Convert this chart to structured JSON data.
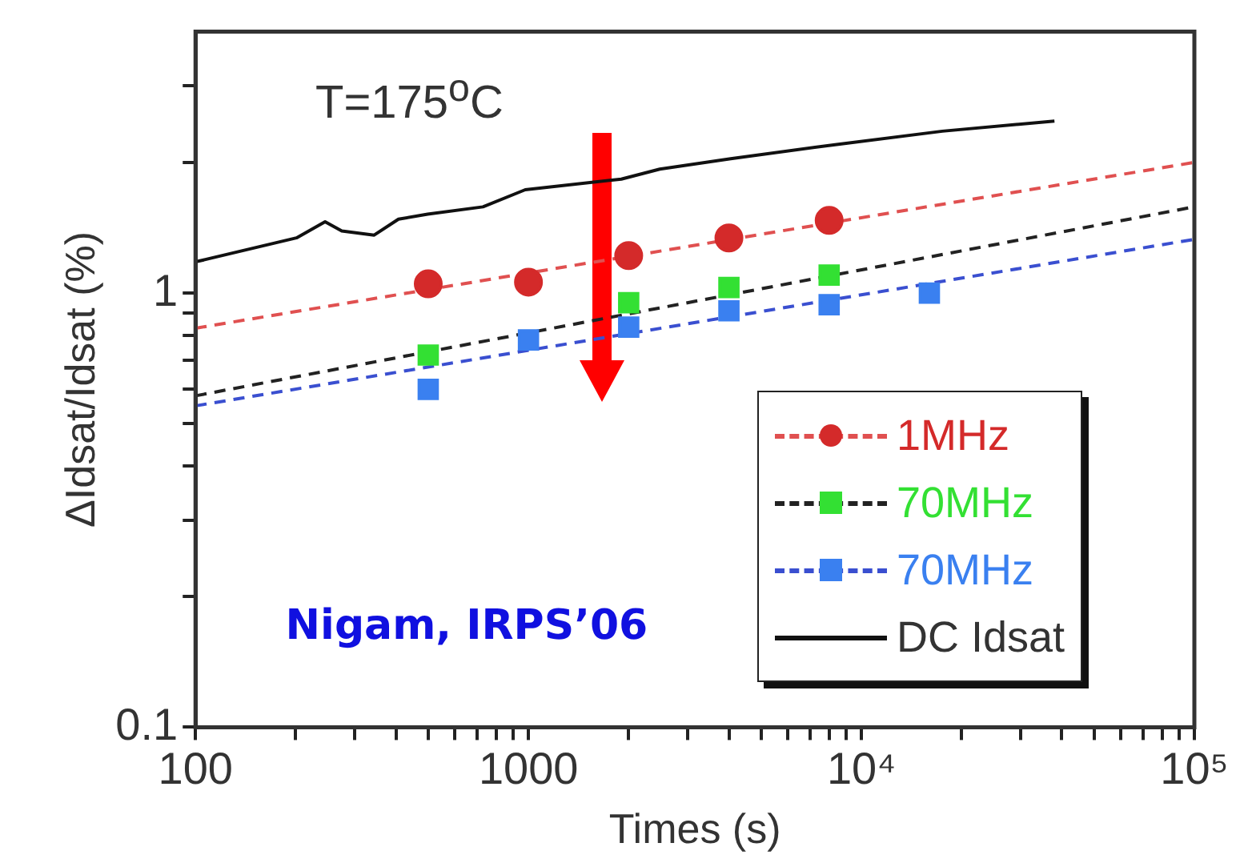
{
  "chart_data": {
    "type": "scatter",
    "xlabel": "Times (s)",
    "ylabel": "ΔIdsat/Idsat (%)",
    "log": "xy",
    "grid": false,
    "legend": "bottom right",
    "xlim": [
      100,
      100000
    ],
    "ylim": [
      0.1,
      4
    ],
    "xticks": [
      100,
      {
        "value": 200,
        "label": null
      },
      {
        "value": 300,
        "label": null
      },
      {
        "value": 400,
        "label": null
      },
      {
        "value": 500,
        "label": null
      },
      {
        "value": 600,
        "label": null
      },
      {
        "value": 700,
        "label": null
      },
      {
        "value": 800,
        "label": null
      },
      {
        "value": 900,
        "label": null
      },
      1000,
      {
        "value": 2000,
        "label": null
      },
      {
        "value": 3000,
        "label": null
      },
      {
        "value": 4000,
        "label": null
      },
      {
        "value": 5000,
        "label": null
      },
      {
        "value": 6000,
        "label": null
      },
      {
        "value": 7000,
        "label": null
      },
      {
        "value": 8000,
        "label": null
      },
      {
        "value": 9000,
        "label": null
      },
      {
        "value": 10000,
        "label": "10⁴"
      },
      {
        "value": 20000,
        "label": null
      },
      {
        "value": 30000,
        "label": null
      },
      {
        "value": 40000,
        "label": null
      },
      {
        "value": 50000,
        "label": null
      },
      {
        "value": 60000,
        "label": null
      },
      {
        "value": 70000,
        "label": null
      },
      {
        "value": 80000,
        "label": null
      },
      {
        "value": 90000,
        "label": null
      },
      {
        "value": 100000,
        "label": "10⁵"
      }
    ],
    "yticks": [
      0.1,
      {
        "value": 0.2,
        "label": null
      },
      {
        "value": 0.3,
        "label": null
      },
      {
        "value": 0.4,
        "label": null
      },
      {
        "value": 0.5,
        "label": null
      },
      {
        "value": 0.6,
        "label": null
      },
      {
        "value": 0.7,
        "label": null
      },
      {
        "value": 0.8,
        "label": null
      },
      {
        "value": 0.9,
        "label": null
      },
      1,
      {
        "value": 2,
        "label": null
      },
      {
        "value": 3,
        "label": null
      }
    ],
    "series": [
      {
        "type": "line",
        "line_style": "dashed",
        "marker": "none",
        "color": "#e05050",
        "x": [
          100,
          100000
        ],
        "values": [
          0.83,
          2.0
        ]
      },
      {
        "type": "line",
        "line_style": "dashed",
        "marker": "none",
        "color": "#222222",
        "x": [
          100,
          100000
        ],
        "values": [
          0.58,
          1.58
        ]
      },
      {
        "type": "line",
        "line_style": "dashed",
        "marker": "none",
        "color": "#3a4fd0",
        "x": [
          100,
          100000
        ],
        "values": [
          0.55,
          1.33
        ]
      },
      {
        "name": "1MHz",
        "type": "scatter",
        "marker": "circle",
        "color": "#d42a2a",
        "x": [
          500,
          1000,
          2000,
          4000,
          8000
        ],
        "values": [
          1.05,
          1.06,
          1.22,
          1.34,
          1.47
        ]
      },
      {
        "name": "70MHz",
        "type": "scatter",
        "marker": "square",
        "color": "#33e033",
        "x": [
          500,
          1000,
          2000,
          4000,
          8000
        ],
        "values": [
          0.72,
          null,
          0.95,
          1.03,
          1.1
        ]
      },
      {
        "name": "70MHz",
        "type": "scatter",
        "marker": "square",
        "color": "#3a80f0",
        "x": [
          500,
          1000,
          2000,
          4000,
          8000,
          16000
        ],
        "values": [
          0.6,
          0.78,
          0.835,
          0.91,
          0.94,
          1.0
        ]
      },
      {
        "name": "DC Idsat",
        "type": "line",
        "line_style": "solid",
        "marker": "none",
        "color": "#111111",
        "x": [
          100,
          201,
          245,
          275,
          344,
          407,
          498,
          730,
          978,
          1900,
          2480,
          4050,
          8430,
          17500,
          38000
        ],
        "values": [
          1.18,
          1.34,
          1.46,
          1.39,
          1.36,
          1.48,
          1.52,
          1.58,
          1.73,
          1.83,
          1.93,
          2.04,
          2.2,
          2.36,
          2.49
        ]
      }
    ],
    "annotations": [
      "T=175$^{o}$C",
      "Nigam, IRPS’06"
    ]
  }
}
